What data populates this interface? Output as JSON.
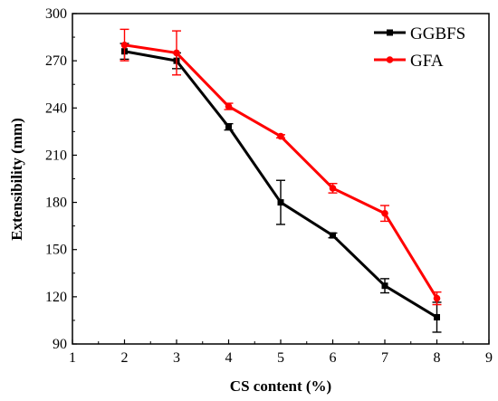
{
  "chart_data": {
    "type": "line",
    "title": "",
    "xlabel": "CS content (%)",
    "ylabel": "Extensibility (mm)",
    "xlim": [
      1,
      9
    ],
    "ylim": [
      90,
      300
    ],
    "xticks": [
      1,
      2,
      3,
      4,
      5,
      6,
      7,
      8,
      9
    ],
    "yticks": [
      90,
      120,
      150,
      180,
      210,
      240,
      270,
      300
    ],
    "x": [
      2,
      3,
      4,
      5,
      6,
      7,
      8
    ],
    "grid": false,
    "legend_position": "top-right",
    "series": [
      {
        "name": "GGBFS",
        "color": "#000000",
        "marker": "square",
        "values": [
          276,
          270,
          228,
          180,
          159,
          127,
          107
        ],
        "errors": [
          5,
          5,
          2,
          14,
          1.5,
          4.5,
          9.5
        ]
      },
      {
        "name": "GFA",
        "color": "#ff0000",
        "marker": "circle",
        "values": [
          280,
          275,
          241,
          222,
          189,
          173,
          119
        ],
        "errors": [
          10,
          14,
          2,
          1,
          3,
          5,
          4
        ]
      }
    ]
  }
}
